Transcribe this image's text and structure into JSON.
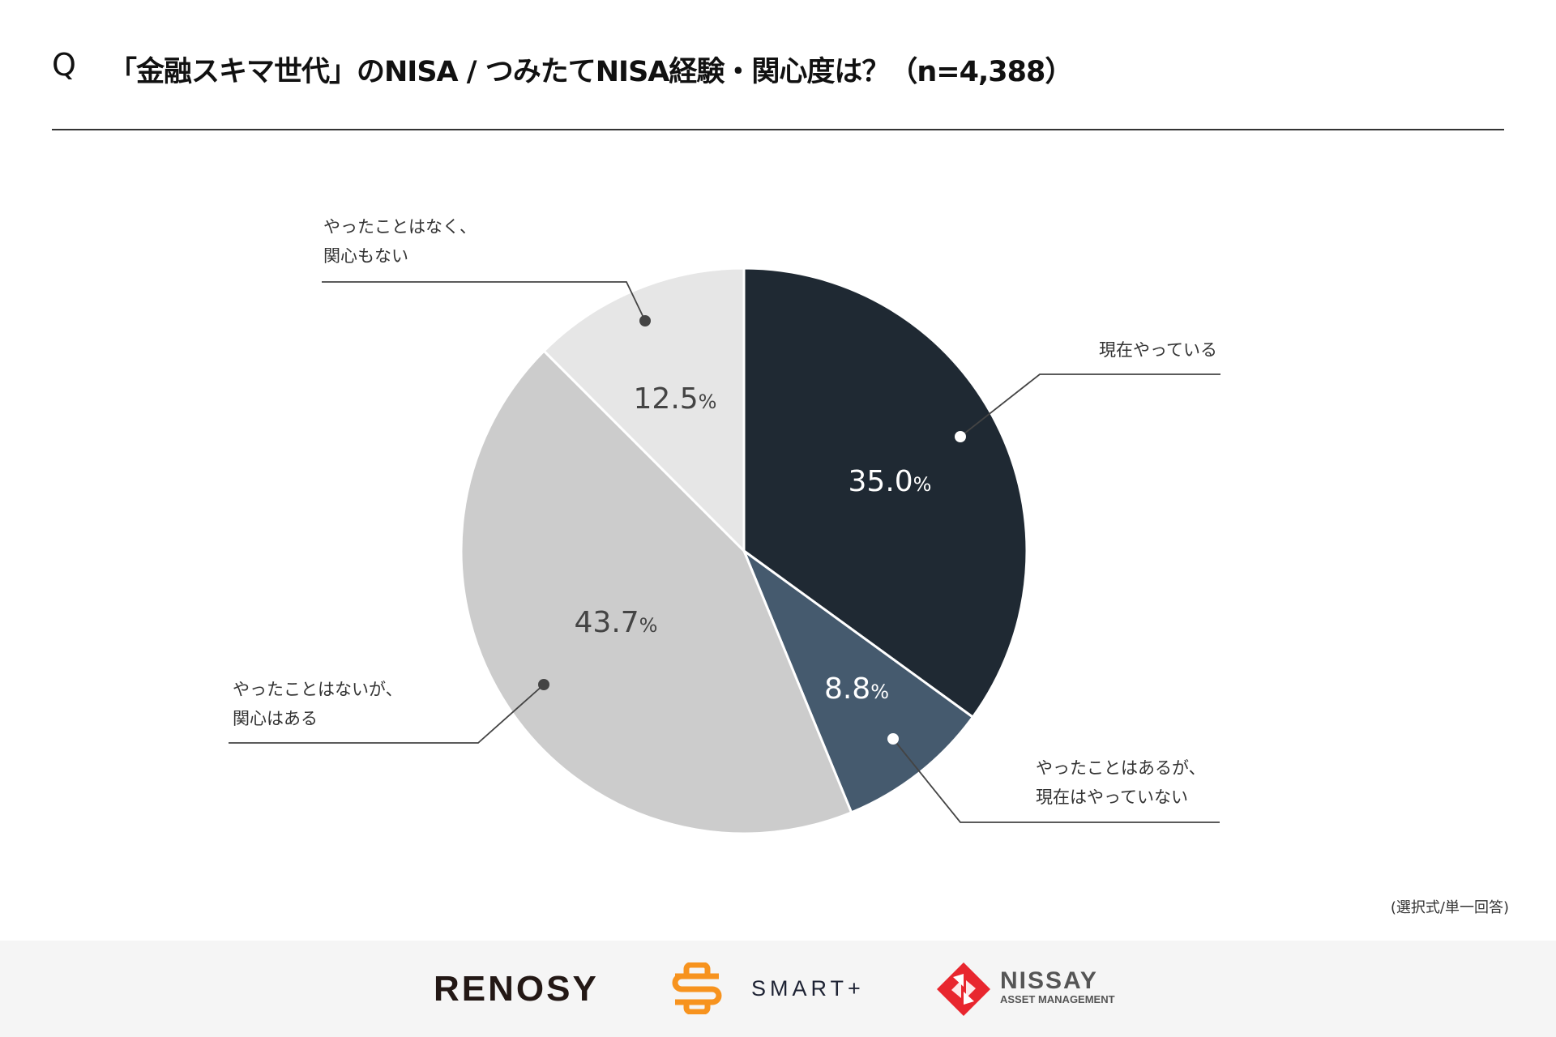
{
  "header": {
    "q_mark": "Q",
    "title": "「金融スキマ世代」のNISA / つみたてNISA経験・関心度は？（n=4,388）"
  },
  "chart_data": {
    "type": "pie",
    "start": "top",
    "direction": "clockwise",
    "slices": [
      {
        "label": "現在やっている",
        "label_lines": [
          "現在やっている"
        ],
        "value": 35.0,
        "display": "35.0",
        "color": "#1f2933",
        "text_color": "#ffffff"
      },
      {
        "label": "やったことはあるが、現在はやっていない",
        "label_lines": [
          "やったことはあるが、",
          "現在はやっていない"
        ],
        "value": 8.8,
        "display": "8.8",
        "color": "#455a6e",
        "text_color": "#ffffff"
      },
      {
        "label": "やったことはないが、関心はある",
        "label_lines": [
          "やったことはないが、",
          "関心はある"
        ],
        "value": 43.7,
        "display": "43.7",
        "color": "#cccccc",
        "text_color": "#444444"
      },
      {
        "label": "やったことはなく、関心もない",
        "label_lines": [
          "やったことはなく、",
          "関心もない"
        ],
        "value": 12.5,
        "display": "12.5",
        "color": "#e6e6e6",
        "text_color": "#444444"
      }
    ],
    "unit": "%"
  },
  "footnote": "(選択式/単一回答)",
  "footer": {
    "logos": [
      "RENOSY",
      "SMART+",
      "NISSAY",
      "ASSET MANAGEMENT"
    ],
    "colors": {
      "smart_orange": "#f7931e",
      "nissay_red": "#e8262e"
    }
  }
}
